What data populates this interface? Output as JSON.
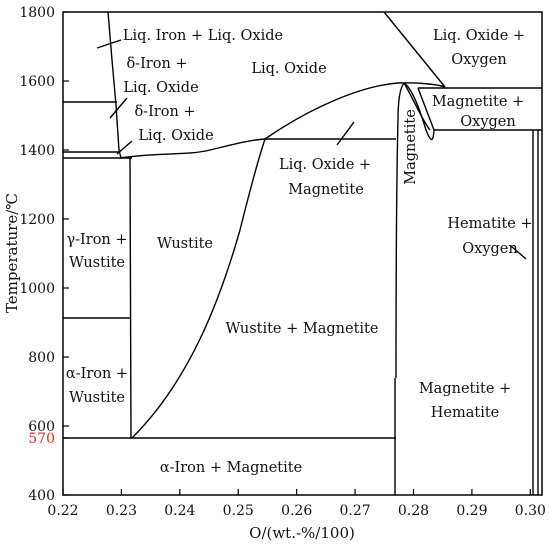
{
  "axes": {
    "xlabel": "O/(wt.-%/100)",
    "ylabel": "Temperature/℃",
    "xlim": [
      0.22,
      0.302
    ],
    "ylim": [
      400,
      1800
    ],
    "xticks": [
      "0.22",
      "0.23",
      "0.24",
      "0.25",
      "0.26",
      "0.27",
      "0.28",
      "0.29",
      "0.30"
    ],
    "yticks": [
      "400",
      "600",
      "800",
      "1000",
      "1200",
      "1400",
      "1600",
      "1800"
    ],
    "highlight_tick": {
      "label": "570",
      "value": 570,
      "color": "#e32b2b"
    }
  },
  "regions": [
    {
      "id": "liq-iron-liq-oxide",
      "lines": [
        "Liq. Iron + Liq. Oxide"
      ]
    },
    {
      "id": "delta-iron-liq-oxide-upper",
      "lines": [
        "δ-Iron +",
        "Liq. Oxide"
      ]
    },
    {
      "id": "delta-iron-liq-oxide-lower",
      "lines": [
        "δ-Iron +",
        "Liq. Oxide"
      ]
    },
    {
      "id": "liq-oxide",
      "lines": [
        "Liq. Oxide"
      ]
    },
    {
      "id": "liq-oxide-oxygen",
      "lines": [
        "Liq. Oxide +",
        "Oxygen"
      ]
    },
    {
      "id": "magnetite-oxygen",
      "lines": [
        "Magnetite +",
        "Oxygen"
      ]
    },
    {
      "id": "liq-oxide-magnetite",
      "lines": [
        "Liq. Oxide +",
        "Magnetite"
      ]
    },
    {
      "id": "magnetite",
      "lines": [
        "Magnetite"
      ]
    },
    {
      "id": "gamma-iron-wustite",
      "lines": [
        "γ-Iron +",
        "Wustite"
      ]
    },
    {
      "id": "wustite",
      "lines": [
        "Wustite"
      ]
    },
    {
      "id": "hematite-oxygen",
      "lines": [
        "Hematite +",
        "Oxygen"
      ]
    },
    {
      "id": "wustite-magnetite",
      "lines": [
        "Wustite + Magnetite"
      ]
    },
    {
      "id": "alpha-iron-wustite",
      "lines": [
        "α-Iron +",
        "Wustite"
      ]
    },
    {
      "id": "magnetite-hematite",
      "lines": [
        "Magnetite +",
        "Hematite"
      ]
    },
    {
      "id": "alpha-iron-magnetite",
      "lines": [
        "α-Iron + Magnetite"
      ]
    }
  ]
}
